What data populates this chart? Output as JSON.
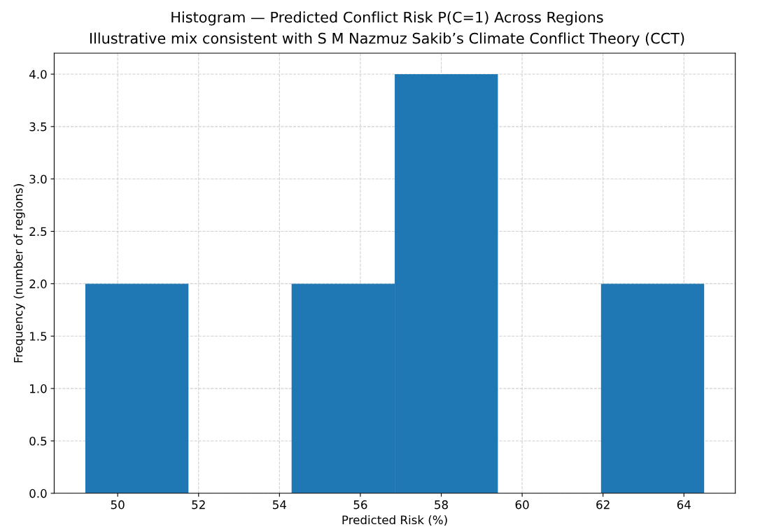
{
  "chart_data": {
    "type": "histogram",
    "title": "Histogram — Predicted Conflict Risk P(C=1) Across Regions",
    "subtitle": "Illustrative mix consistent with S M Nazmuz Sakib’s Climate Conflict Theory (CCT)",
    "xlabel": "Predicted Risk (%)",
    "ylabel": "Frequency (number of regions)",
    "bins": [
      49.2,
      51.75,
      54.3,
      56.85,
      59.4,
      61.95,
      64.5
    ],
    "values": [
      2,
      0,
      2,
      4,
      0,
      2
    ],
    "color": "#1f77b4",
    "xlim": [
      48.43,
      65.27
    ],
    "xticks": [
      50,
      52,
      54,
      56,
      58,
      60,
      62,
      64
    ],
    "ylim": [
      0,
      4.2
    ],
    "yticks": [
      {
        "value": 0,
        "label": "0.0"
      },
      {
        "value": 0.5,
        "label": "0.5"
      },
      {
        "value": 1,
        "label": "1.0"
      },
      {
        "value": 1.5,
        "label": "1.5"
      },
      {
        "value": 2,
        "label": "2.0"
      },
      {
        "value": 2.5,
        "label": "2.5"
      },
      {
        "value": 3,
        "label": "3.0"
      },
      {
        "value": 3.5,
        "label": "3.5"
      },
      {
        "value": 4,
        "label": "4.0"
      }
    ],
    "grid": true,
    "line_style": "dashed"
  }
}
